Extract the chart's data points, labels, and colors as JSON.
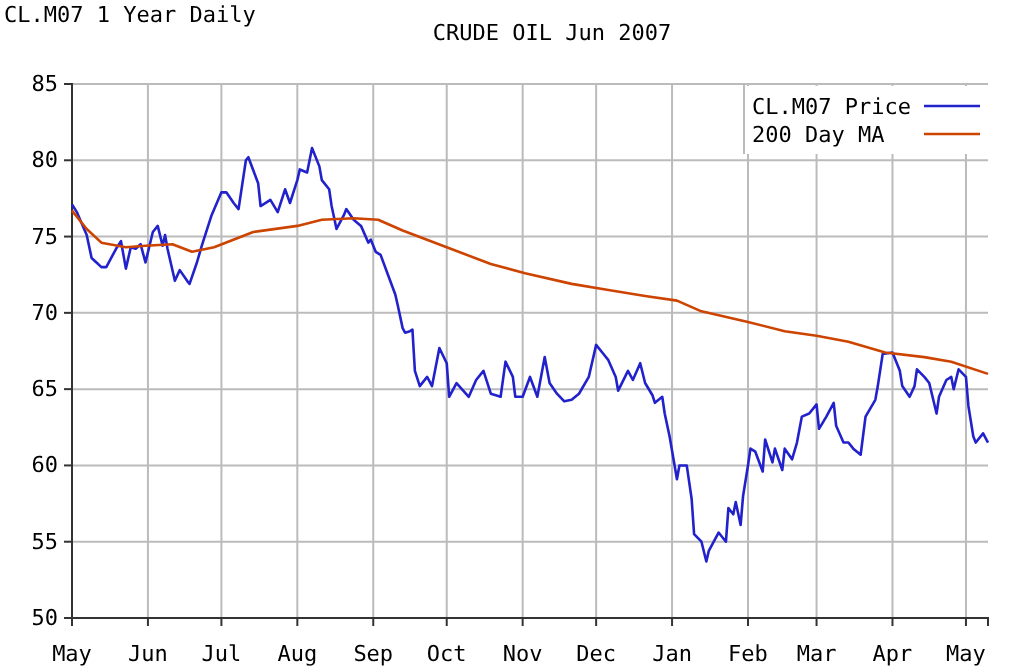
{
  "chart_data": {
    "type": "line",
    "title": "CRUDE OIL Jun 2007",
    "subtitle": "CL.M07 1 Year Daily",
    "xlim": [
      "2006-05-01",
      "2007-05-10"
    ],
    "xticks": [
      {
        "value": "2006-05",
        "label": "May"
      },
      {
        "value": "2006-06",
        "label": "Jun"
      },
      {
        "value": "2006-07",
        "label": "Jul"
      },
      {
        "value": "2006-08",
        "label": "Aug"
      },
      {
        "value": "2006-09",
        "label": "Sep"
      },
      {
        "value": "2006-10",
        "label": "Oct"
      },
      {
        "value": "2006-11",
        "label": "Nov"
      },
      {
        "value": "2006-12",
        "label": "Dec"
      },
      {
        "value": "2007-01",
        "label": "Jan"
      },
      {
        "value": "2007-02",
        "label": "Feb"
      },
      {
        "value": "2007-03",
        "label": "Mar"
      },
      {
        "value": "2007-04",
        "label": "Apr"
      },
      {
        "value": "2007-05",
        "label": "May"
      }
    ],
    "ylim": [
      50,
      85
    ],
    "yticks": [
      50,
      55,
      60,
      65,
      70,
      75,
      80,
      85
    ],
    "grid": true,
    "legend": "top right",
    "line_style": "solid",
    "series": [
      {
        "name": "CL.M07 Price",
        "color": "#2222cc",
        "x": [
          "2006-05-01",
          "2006-05-03",
          "2006-05-07",
          "2006-05-09",
          "2006-05-11",
          "2006-05-13",
          "2006-05-15",
          "2006-05-19",
          "2006-05-21",
          "2006-05-23",
          "2006-05-25",
          "2006-05-27",
          "2006-05-29",
          "2006-05-31",
          "2006-06-03",
          "2006-06-05",
          "2006-06-07",
          "2006-06-08",
          "2006-06-09",
          "2006-06-12",
          "2006-06-14",
          "2006-06-17",
          "2006-06-18",
          "2006-06-21",
          "2006-06-23",
          "2006-06-27",
          "2006-07-01",
          "2006-07-03",
          "2006-07-06",
          "2006-07-08",
          "2006-07-11",
          "2006-07-12",
          "2006-07-16",
          "2006-07-17",
          "2006-07-21",
          "2006-07-24",
          "2006-07-27",
          "2006-07-29",
          "2006-08-01",
          "2006-08-02",
          "2006-08-05",
          "2006-08-07",
          "2006-08-10",
          "2006-08-11",
          "2006-08-14",
          "2006-08-15",
          "2006-08-17",
          "2006-08-20",
          "2006-08-21",
          "2006-08-24",
          "2006-08-27",
          "2006-08-30",
          "2006-08-31",
          "2006-09-02",
          "2006-09-04",
          "2006-09-07",
          "2006-09-10",
          "2006-09-11",
          "2006-09-13",
          "2006-09-14",
          "2006-09-16",
          "2006-09-17",
          "2006-09-18",
          "2006-09-20",
          "2006-09-23",
          "2006-09-25",
          "2006-09-28",
          "2006-10-01",
          "2006-10-02",
          "2006-10-05",
          "2006-10-10",
          "2006-10-13",
          "2006-10-16",
          "2006-10-19",
          "2006-10-23",
          "2006-10-25",
          "2006-10-28",
          "2006-10-29",
          "2006-11-01",
          "2006-11-04",
          "2006-11-07",
          "2006-11-10",
          "2006-11-12",
          "2006-11-15",
          "2006-11-18",
          "2006-11-21",
          "2006-11-24",
          "2006-11-28",
          "2006-12-01",
          "2006-12-04",
          "2006-12-06",
          "2006-12-09",
          "2006-12-10",
          "2006-12-14",
          "2006-12-16",
          "2006-12-19",
          "2006-12-21",
          "2006-12-24",
          "2006-12-25",
          "2006-12-28",
          "2006-12-29",
          "2006-12-31",
          "2007-01-03",
          "2007-01-04",
          "2007-01-07",
          "2007-01-09",
          "2007-01-10",
          "2007-01-13",
          "2007-01-15",
          "2007-01-16",
          "2007-01-20",
          "2007-01-23",
          "2007-01-24",
          "2007-01-26",
          "2007-01-27",
          "2007-01-29",
          "2007-01-30",
          "2007-02-01",
          "2007-02-02",
          "2007-02-04",
          "2007-02-07",
          "2007-02-08",
          "2007-02-11",
          "2007-02-12",
          "2007-02-15",
          "2007-02-16",
          "2007-02-19",
          "2007-02-21",
          "2007-02-23",
          "2007-02-26",
          "2007-03-01",
          "2007-03-02",
          "2007-03-05",
          "2007-03-08",
          "2007-03-09",
          "2007-03-12",
          "2007-03-14",
          "2007-03-16",
          "2007-03-19",
          "2007-03-21",
          "2007-03-25",
          "2007-03-26",
          "2007-03-28",
          "2007-04-01",
          "2007-04-04",
          "2007-04-05",
          "2007-04-08",
          "2007-04-10",
          "2007-04-11",
          "2007-04-14",
          "2007-04-16",
          "2007-04-19",
          "2007-04-20",
          "2007-04-23",
          "2007-04-25",
          "2007-04-26",
          "2007-04-28",
          "2007-05-01",
          "2007-05-02",
          "2007-05-04",
          "2007-05-05",
          "2007-05-08",
          "2007-05-10"
        ],
        "values": [
          77.1,
          76.6,
          75.1,
          73.6,
          73.3,
          73.0,
          73.0,
          74.2,
          74.7,
          72.9,
          74.3,
          74.2,
          74.5,
          73.3,
          75.3,
          75.7,
          74.4,
          75.1,
          74.2,
          72.1,
          72.8,
          72.1,
          71.9,
          73.3,
          74.4,
          76.4,
          77.9,
          77.9,
          77.2,
          76.8,
          80.0,
          80.2,
          78.5,
          77.0,
          77.4,
          76.6,
          78.1,
          77.2,
          78.7,
          79.4,
          79.2,
          80.8,
          79.6,
          78.7,
          78.1,
          77.0,
          75.5,
          76.4,
          76.8,
          76.1,
          75.7,
          74.6,
          74.8,
          74.0,
          73.8,
          72.5,
          71.2,
          70.5,
          69.0,
          68.7,
          68.8,
          68.9,
          66.2,
          65.2,
          65.8,
          65.2,
          67.7,
          66.7,
          64.5,
          65.4,
          64.5,
          65.6,
          66.2,
          64.7,
          64.5,
          66.8,
          65.8,
          64.5,
          64.5,
          65.8,
          64.5,
          67.1,
          65.4,
          64.7,
          64.2,
          64.3,
          64.7,
          65.8,
          67.9,
          67.3,
          66.9,
          65.8,
          64.9,
          66.2,
          65.6,
          66.7,
          65.4,
          64.6,
          64.1,
          64.5,
          63.4,
          61.9,
          59.1,
          60.0,
          60.0,
          57.8,
          55.5,
          55.0,
          53.7,
          54.4,
          55.6,
          55.0,
          57.2,
          56.8,
          57.6,
          56.1,
          58.0,
          60.0,
          61.1,
          60.9,
          59.6,
          61.7,
          60.2,
          61.1,
          59.7,
          61.1,
          60.4,
          61.5,
          63.2,
          63.4,
          64.0,
          62.4,
          63.2,
          64.1,
          62.6,
          61.5,
          61.5,
          61.1,
          60.7,
          63.2,
          64.3,
          65.2,
          67.3,
          67.4,
          66.2,
          65.2,
          64.5,
          65.2,
          66.3,
          65.8,
          65.4,
          63.4,
          64.5,
          65.6,
          65.8,
          65.0,
          66.3,
          65.8,
          63.9,
          61.9,
          61.5,
          62.1,
          61.5
        ]
      },
      {
        "name": "200 Day MA",
        "color": "#cc4400",
        "x": [
          "2006-05-01",
          "2006-05-07",
          "2006-05-13",
          "2006-05-23",
          "2006-05-31",
          "2006-06-11",
          "2006-06-19",
          "2006-06-28",
          "2006-07-14",
          "2006-08-01",
          "2006-08-11",
          "2006-08-24",
          "2006-09-03",
          "2006-09-13",
          "2006-10-01",
          "2006-10-19",
          "2006-11-02",
          "2006-11-21",
          "2006-12-06",
          "2006-12-21",
          "2007-01-03",
          "2007-01-13",
          "2007-02-01",
          "2007-02-16",
          "2007-03-01",
          "2007-03-14",
          "2007-03-29",
          "2007-04-14",
          "2007-04-25",
          "2007-05-10"
        ],
        "values": [
          76.7,
          75.5,
          74.6,
          74.3,
          74.4,
          74.5,
          74.0,
          74.3,
          75.3,
          75.7,
          76.1,
          76.2,
          76.1,
          75.4,
          74.3,
          73.2,
          72.6,
          71.9,
          71.5,
          71.1,
          70.8,
          70.1,
          69.4,
          68.8,
          68.5,
          68.1,
          67.4,
          67.1,
          66.8,
          66.0
        ]
      }
    ]
  }
}
